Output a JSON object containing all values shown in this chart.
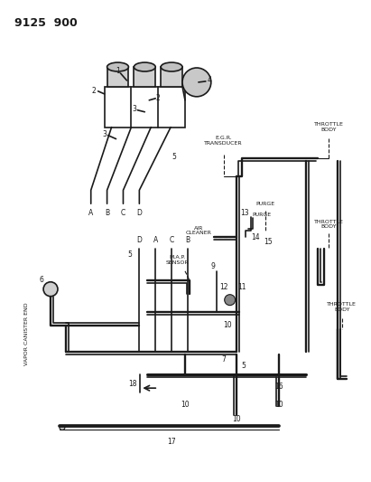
{
  "bg_color": "#ffffff",
  "line_color": "#1a1a1a",
  "text_color": "#1a1a1a",
  "fig_width": 4.11,
  "fig_height": 5.33,
  "dpi": 100,
  "header": "9125  900",
  "egr_label": "E.G.R.\nTRANSDUCER",
  "throttle_body": "THROTTLE\nBODY",
  "purge_label": "PURGE",
  "air_cleaner": "AIR\nCLEANER",
  "map_sensor": "M.A.P.\nSENSOR",
  "vapor_canister": "VAPOR CANISTER END"
}
